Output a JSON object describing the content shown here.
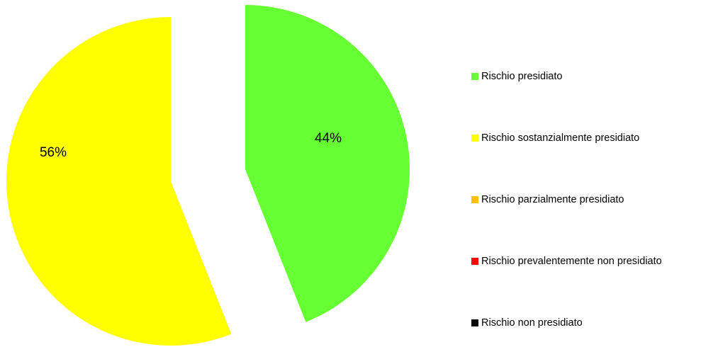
{
  "chart_data": {
    "type": "pie",
    "title": "",
    "slices": [
      {
        "name": "Rischio presidiato",
        "value": 44,
        "label": "44%",
        "color": "#66ff33",
        "exploded": true
      },
      {
        "name": "Rischio sostanzialmente presidiato",
        "value": 56,
        "label": "56%",
        "color": "#ffff00",
        "exploded": true
      },
      {
        "name": "Rischio parzialmente presidiato",
        "value": 0,
        "label": "",
        "color": "#ffc000"
      },
      {
        "name": "Rischio prevalentemente non presidiato",
        "value": 0,
        "label": "",
        "color": "#ff0000"
      },
      {
        "name": "Rischio non presidiato",
        "value": 0,
        "label": "",
        "color": "#000000"
      }
    ],
    "legend_position": "right",
    "start_angle": "12 o'clock",
    "direction": "clockwise"
  }
}
